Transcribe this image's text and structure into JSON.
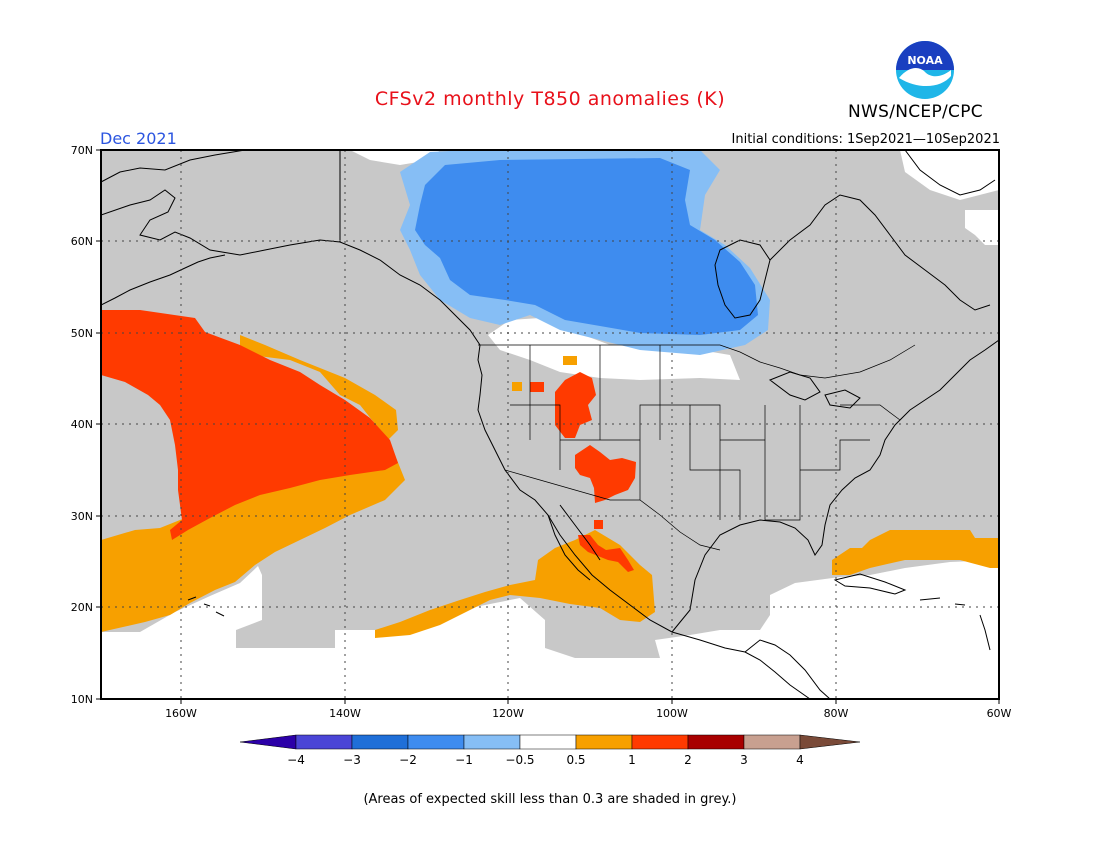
{
  "title": "CFSv2 monthly T850 anomalies (K)",
  "agency": "NWS/NCEP/CPC",
  "valid_month": "Dec 2021",
  "initial_conditions": "Initial conditions: 1Sep2021—10Sep2021",
  "footnote": "(Areas of expected skill less than 0.3 are shaded in grey.)",
  "logo_text": "NOAA",
  "map": {
    "lon_range": [
      -172,
      -60
    ],
    "lat_range": [
      10,
      70
    ],
    "lon_ticks": [
      "160W",
      "140W",
      "120W",
      "100W",
      "80W",
      "60W"
    ],
    "lat_ticks": [
      "70N",
      "60N",
      "50N",
      "40N",
      "30N",
      "20N",
      "10N"
    ],
    "gridlines": "dotted",
    "low_skill_color": "#c8c8c8"
  },
  "colorbar": {
    "labels": [
      "−4",
      "−3",
      "−2",
      "−1",
      "−0.5",
      "0.5",
      "1",
      "2",
      "3",
      "4"
    ],
    "colors": [
      "#2c00a8",
      "#4a45d6",
      "#1f6fd8",
      "#3e8cef",
      "#86bef5",
      "#ffffff",
      "#f7a000",
      "#ff3a00",
      "#a80000",
      "#c8a090",
      "#7a4a38"
    ]
  },
  "icons": {
    "logo": "noaa-logo-icon"
  }
}
